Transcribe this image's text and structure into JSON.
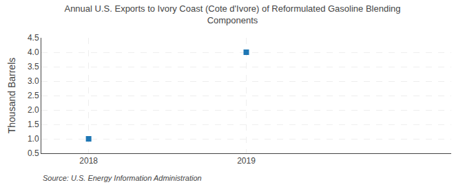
{
  "chart_data": {
    "type": "scatter",
    "title": "Annual U.S. Exports to Ivory Coast (Cote d'Ivore) of Reformulated Gasoline Blending\nComponents",
    "ylabel": "Thousand Barrels",
    "annotations": [
      "Source: U.S. Energy Information Administration"
    ],
    "x": [
      2018,
      2019
    ],
    "values": [
      1.0,
      4.0
    ],
    "marker": "square",
    "xlim": [
      2017.7,
      2020.3
    ],
    "xticks": [
      2018,
      2019
    ],
    "ylim": [
      0.5,
      4.5
    ],
    "yticks": [
      0.5,
      {
        "value": 1.0,
        "label": "1.0"
      },
      1.5,
      {
        "value": 2.0,
        "label": "2.0"
      },
      2.5,
      {
        "value": 3.0,
        "label": "3.0"
      },
      3.5,
      {
        "value": 4.0,
        "label": "4.0"
      },
      4.5
    ],
    "grid": true
  }
}
